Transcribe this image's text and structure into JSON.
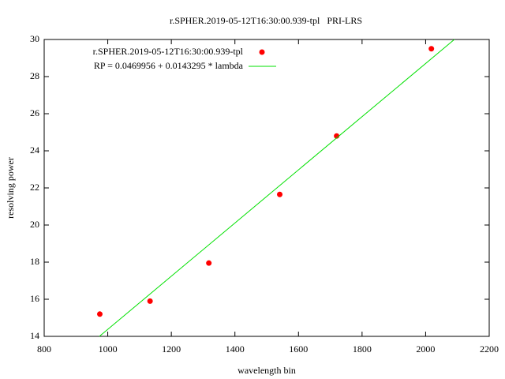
{
  "chart_data": {
    "type": "scatter",
    "title": "r.SPHER.2019-05-12T16:30:00.939-tpl   PRI-LRS",
    "x_label": "wavelength bin",
    "y_label": "resolving power",
    "xlim": [
      800,
      2200
    ],
    "xticks": [
      800,
      1000,
      1200,
      1400,
      1600,
      1800,
      2000,
      2200
    ],
    "ylim": [
      14,
      30
    ],
    "yticks": [
      14,
      16,
      18,
      20,
      22,
      24,
      26,
      28,
      30
    ],
    "legend": "upper-left",
    "series": [
      {
        "name": "r.SPHER.2019-05-12T16:30:00.939-tpl",
        "type": "scatter",
        "color": "#ff0000",
        "x": [
          975,
          1133,
          1318,
          1541,
          1720,
          2018
        ],
        "values": [
          15.2,
          15.9,
          17.95,
          21.65,
          24.8,
          29.5
        ]
      },
      {
        "name": "RP = 0.0469956 + 0.0143295 * lambda",
        "type": "line",
        "color": "#00e000",
        "x": [
          973.7,
          2090.3
        ],
        "values": [
          14,
          30
        ]
      }
    ]
  }
}
